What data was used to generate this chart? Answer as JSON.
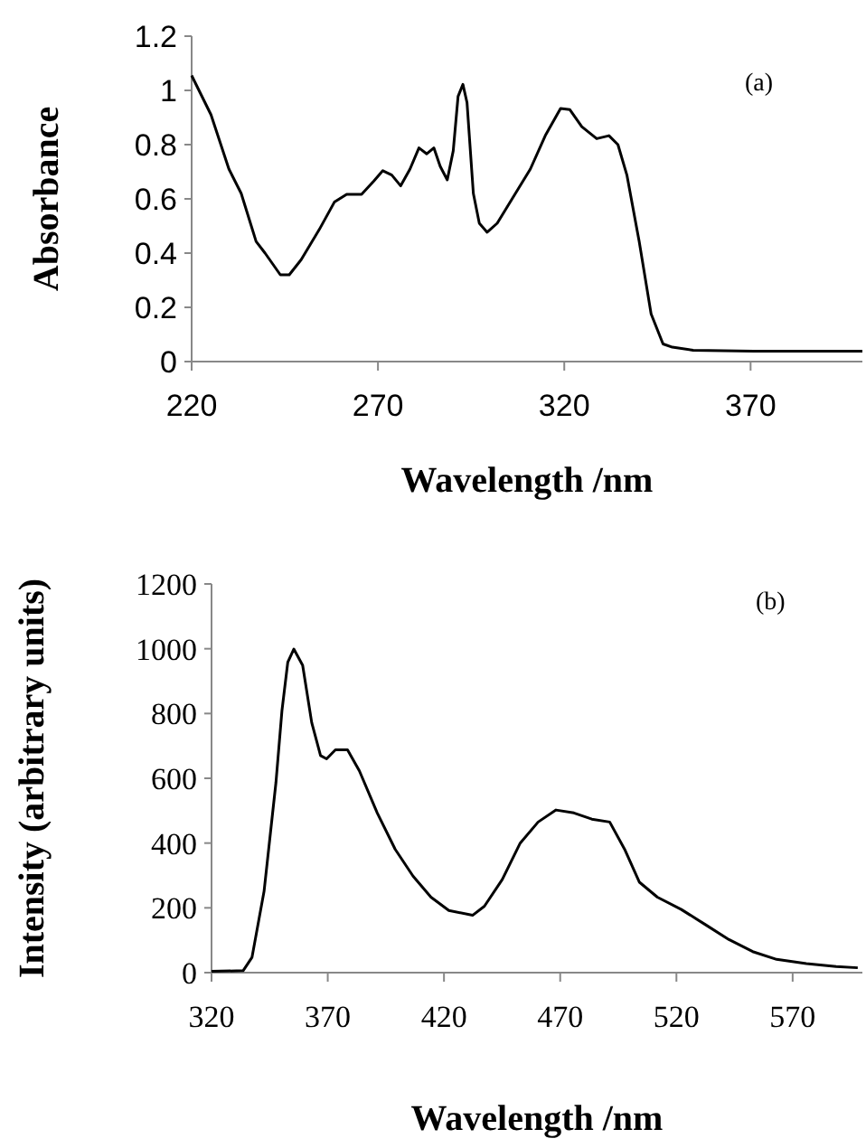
{
  "chart_data": [
    {
      "type": "line",
      "xlabel": "Wavelength /nm",
      "ylabel": "Absorbance",
      "annotations": [
        "(a)"
      ],
      "xlim": [
        220,
        400
      ],
      "xticks": [
        220,
        270,
        320,
        370
      ],
      "ylim": [
        0,
        1.2
      ],
      "yticks": [
        0,
        0.2,
        0.4,
        0.6,
        0.8,
        1,
        1.2
      ],
      "grid": false,
      "marker": "none",
      "line_style": "solid",
      "series": [
        {
          "color": "#000000",
          "x": [
            220,
            225.2,
            230,
            233.3,
            237.3,
            239.7,
            243.8,
            246.2,
            249.4,
            254.3,
            258.3,
            261.6,
            265.6,
            268.9,
            271.3,
            273.7,
            276.1,
            278.6,
            281,
            283.1,
            285,
            286.7,
            288.6,
            290.2,
            291.5,
            292.8,
            293.9,
            295.6,
            297.2,
            299.3,
            302,
            306,
            310.9,
            314.9,
            319,
            321.5,
            324.7,
            328.7,
            332,
            334.4,
            336.8,
            340.1,
            343.3,
            346.5,
            349,
            354.6,
            370.8,
            400
          ],
          "values": [
            1.055,
            0.91,
            0.71,
            0.62,
            0.443,
            0.4,
            0.32,
            0.32,
            0.376,
            0.488,
            0.588,
            0.617,
            0.617,
            0.666,
            0.704,
            0.688,
            0.648,
            0.71,
            0.788,
            0.766,
            0.788,
            0.72,
            0.67,
            0.777,
            0.978,
            1.022,
            0.955,
            0.62,
            0.51,
            0.477,
            0.51,
            0.6,
            0.71,
            0.833,
            0.933,
            0.929,
            0.866,
            0.822,
            0.833,
            0.8,
            0.688,
            0.443,
            0.176,
            0.065,
            0.053,
            0.042,
            0.038,
            0.038
          ]
        }
      ]
    },
    {
      "type": "line",
      "xlabel": "Wavelength /nm",
      "ylabel": "Intensity (arbitrary units)",
      "annotations": [
        "(b)"
      ],
      "xlim": [
        320,
        600
      ],
      "xticks": [
        320,
        370,
        420,
        470,
        520,
        570
      ],
      "ylim": [
        0,
        1200
      ],
      "yticks": [
        0,
        200,
        400,
        600,
        800,
        1000,
        1200
      ],
      "grid": false,
      "marker": "none",
      "line_style": "solid",
      "series": [
        {
          "color": "#000000",
          "x": [
            320,
            333.6,
            337.4,
            342.6,
            347.7,
            350.3,
            352.8,
            355.4,
            359.2,
            363.1,
            366.9,
            369.5,
            373.3,
            378.5,
            383.6,
            391.3,
            399,
            406.7,
            414.4,
            422.1,
            432.3,
            437.4,
            445.1,
            452.8,
            460.5,
            468.2,
            475.9,
            483.6,
            491.3,
            497.7,
            504.1,
            511.8,
            522.1,
            532.3,
            542.6,
            552.8,
            563.1,
            575.9,
            588.7,
            598
          ],
          "values": [
            4,
            6,
            47,
            251,
            586,
            809,
            958,
            999,
            949,
            772,
            670,
            660,
            688,
            688,
            623,
            493,
            381,
            298,
            233,
            192,
            177,
            205,
            288,
            400,
            465,
            502,
            493,
            474,
            465,
            381,
            279,
            233,
            195,
            149,
            102,
            65,
            41,
            28,
            19,
            15
          ]
        }
      ]
    }
  ]
}
